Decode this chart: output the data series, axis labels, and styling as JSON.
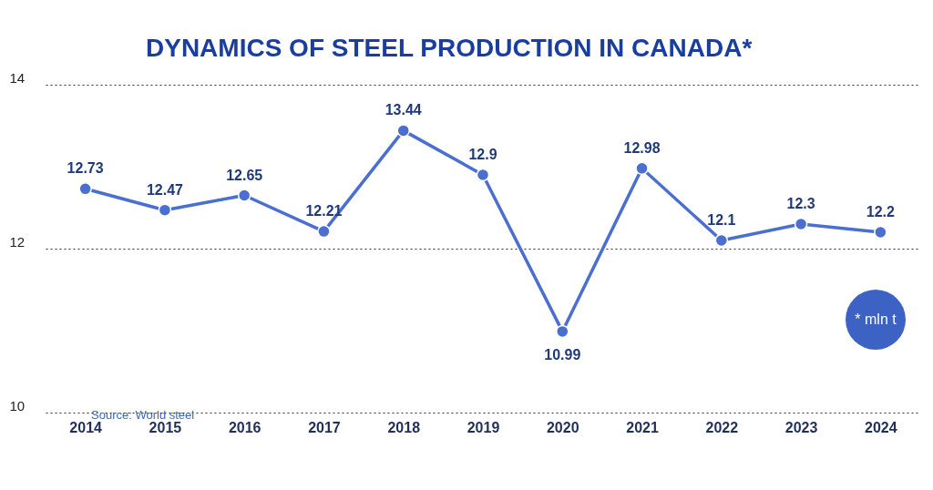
{
  "chart_data": {
    "type": "line",
    "title": "DYNAMICS OF STEEL PRODUCTION IN CANADA*",
    "categories": [
      "2014",
      "2015",
      "2016",
      "2017",
      "2018",
      "2019",
      "2020",
      "2021",
      "2022",
      "2023",
      "2024"
    ],
    "series": [
      {
        "color": "#4a6fd0",
        "values": [
          12.73,
          12.47,
          12.65,
          12.21,
          13.44,
          12.9,
          10.99,
          12.98,
          12.1,
          12.3,
          12.2
        ]
      }
    ],
    "ylim": [
      10,
      14
    ],
    "yticks": [
      10,
      12,
      14
    ],
    "grid": "y",
    "marker": "circle",
    "line_style": "solid",
    "data_labels": true,
    "annotations": [
      "Source: World steel",
      "* mln t"
    ]
  }
}
